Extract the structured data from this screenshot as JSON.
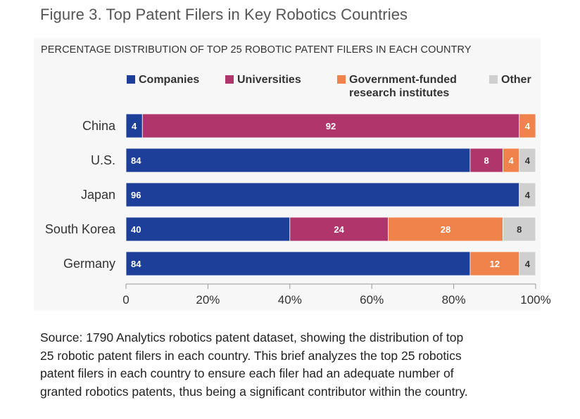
{
  "figure": {
    "title": "Figure 3. Top Patent Filers in Key Robotics Countries",
    "source_lines": [
      "Source: 1790 Analytics robotics patent dataset, showing the distribution of top",
      "25 robotic patent filers in each country. This brief analyzes the top 25 robotics",
      "patent filers in each country to ensure each filer had an adequate number of",
      "granted robotics patents, thus being a significant contributor within the country."
    ]
  },
  "chart_data": {
    "type": "bar",
    "orientation": "horizontal",
    "stacked": true,
    "title": "PERCENTAGE DISTRIBUTION OF TOP 25 ROBOTIC PATENT FILERS IN EACH COUNTRY",
    "categories": [
      "China",
      "U.S.",
      "Japan",
      "South Korea",
      "Germany"
    ],
    "series": [
      {
        "name": "Companies",
        "color": "#1d3f9a",
        "values": [
          4,
          84,
          96,
          40,
          84
        ]
      },
      {
        "name": "Universities",
        "color": "#b0356b",
        "values": [
          92,
          8,
          0,
          24,
          0
        ]
      },
      {
        "name": "Government-funded research institutes",
        "legend_lines": [
          "Government-funded",
          "research institutes"
        ],
        "color": "#f0834c",
        "values": [
          4,
          4,
          0,
          28,
          12
        ]
      },
      {
        "name": "Other",
        "color": "#cfcfcf",
        "values": [
          0,
          4,
          4,
          8,
          4
        ]
      }
    ],
    "xlim": [
      0,
      100
    ],
    "xticks": [
      "0",
      "20%",
      "40%",
      "60%",
      "80%",
      "100%"
    ],
    "xlabel": "",
    "ylabel": "",
    "legend_position": "top",
    "grid": false
  }
}
